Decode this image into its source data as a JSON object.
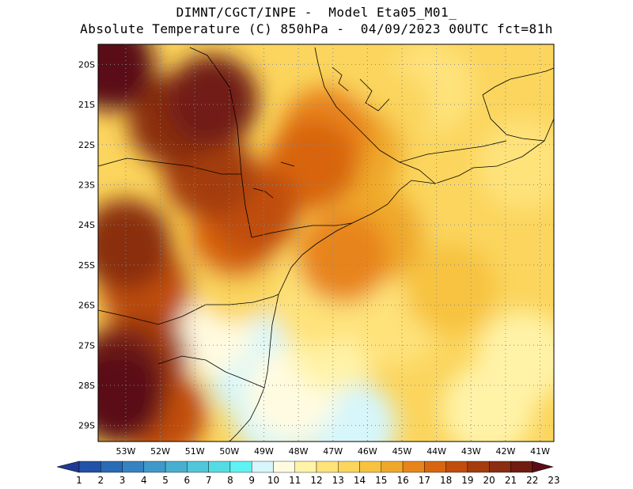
{
  "header": {
    "line1": "DIMNT/CGCT/INPE -  Model Eta05_M01_",
    "line2": "Absolute Temperature (C) 850hPa -  04/09/2023 00UTC fct=81h"
  },
  "map": {
    "lat_labels": [
      "20S",
      "21S",
      "22S",
      "23S",
      "24S",
      "25S",
      "26S",
      "27S",
      "28S",
      "29S"
    ],
    "lon_labels": [
      "53W",
      "52W",
      "51W",
      "50W",
      "49W",
      "48W",
      "47W",
      "46W",
      "45W",
      "44W",
      "43W",
      "42W",
      "41W"
    ],
    "lat_range": [
      -29.4,
      -19.5
    ],
    "lon_range": [
      -53.8,
      -40.6
    ],
    "grid": "dotted",
    "fields": [
      {
        "level": 10,
        "lon": -48.6,
        "lat": -28.7
      },
      {
        "level": 10,
        "lon": -46.5,
        "lat": -29.0
      },
      {
        "level": 10,
        "lon": -49.3,
        "lat": -27.7
      },
      {
        "level": 10,
        "lon": -48.8,
        "lat": -27.0
      },
      {
        "level": 11,
        "lon": -48.2,
        "lat": -28.2
      },
      {
        "level": 11,
        "lon": -50.6,
        "lat": -26.6
      },
      {
        "level": 12,
        "lon": -47.0,
        "lat": -27.0
      },
      {
        "level": 12,
        "lon": -41.5,
        "lat": -27.3
      },
      {
        "level": 12,
        "lon": -42.5,
        "lat": -28.6
      },
      {
        "level": 13,
        "lon": -47.5,
        "lat": -25.9
      },
      {
        "level": 13,
        "lon": -45.2,
        "lat": -26.4
      },
      {
        "level": 13,
        "lon": -41.5,
        "lat": -22.5
      },
      {
        "level": 13,
        "lon": -44.2,
        "lat": -20.6
      },
      {
        "level": 14,
        "lon": -44.0,
        "lat": -24.6
      },
      {
        "level": 14,
        "lon": -49.8,
        "lat": -25.3
      },
      {
        "level": 14,
        "lon": -45.5,
        "lat": -21.2
      },
      {
        "level": 15,
        "lon": -46.0,
        "lat": -23.8
      },
      {
        "level": 15,
        "lon": -43.6,
        "lat": -25.6
      },
      {
        "level": 16,
        "lon": -45.7,
        "lat": -24.3
      },
      {
        "level": 16,
        "lon": -46.3,
        "lat": -22.2
      },
      {
        "level": 17,
        "lon": -47.2,
        "lat": -21.7
      },
      {
        "level": 17,
        "lon": -46.7,
        "lat": -24.8
      },
      {
        "level": 18,
        "lon": -47.6,
        "lat": -22.5
      },
      {
        "level": 18,
        "lon": -49.8,
        "lat": -24.2
      },
      {
        "level": 19,
        "lon": -49.3,
        "lat": -23.6
      },
      {
        "level": 19,
        "lon": -52.4,
        "lat": -25.6
      },
      {
        "level": 19,
        "lon": -52.0,
        "lat": -28.7
      },
      {
        "level": 20,
        "lon": -50.6,
        "lat": -22.7
      },
      {
        "level": 20,
        "lon": -52.5,
        "lat": -27.3
      },
      {
        "level": 21,
        "lon": -51.6,
        "lat": -21.4
      },
      {
        "level": 21,
        "lon": -53.0,
        "lat": -24.5
      },
      {
        "level": 22,
        "lon": -50.5,
        "lat": -20.9
      },
      {
        "level": 22,
        "lon": -53.2,
        "lat": -27.7
      },
      {
        "level": 23,
        "lon": -53.5,
        "lat": -20.0
      },
      {
        "level": 23,
        "lon": -53.2,
        "lat": -28.3
      }
    ]
  },
  "colorbar": {
    "labels": [
      "1",
      "2",
      "3",
      "4",
      "5",
      "6",
      "7",
      "8",
      "9",
      "10",
      "11",
      "12",
      "13",
      "14",
      "15",
      "16",
      "17",
      "18",
      "19",
      "20",
      "21",
      "22",
      "23"
    ],
    "colors": [
      "#1f3a93",
      "#2151a8",
      "#2a6bb5",
      "#3583c0",
      "#3f99c8",
      "#48afcf",
      "#51c6d8",
      "#55dbe3",
      "#5ff2f2",
      "#d6f6fb",
      "#fffbe1",
      "#fff3a8",
      "#fee27a",
      "#fbd55d",
      "#f7c33f",
      "#efa82a",
      "#e8841c",
      "#d8650f",
      "#c04d0c",
      "#a43c0e",
      "#8a2d10",
      "#711c12",
      "#5a0d17"
    ]
  }
}
